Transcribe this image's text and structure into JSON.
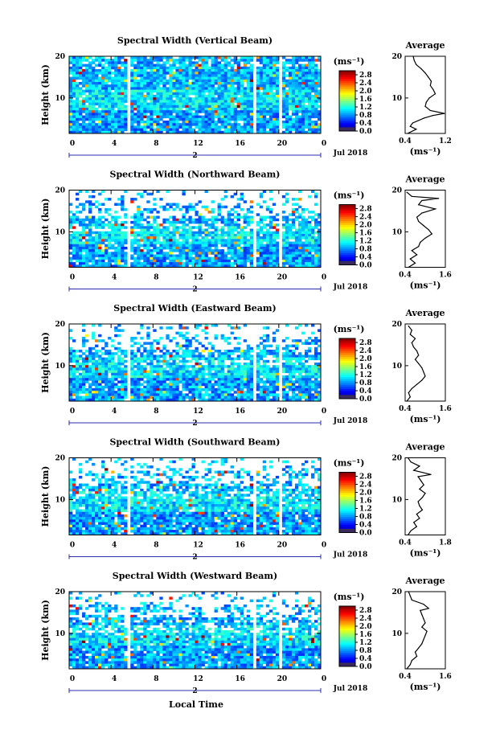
{
  "figure": {
    "xlabel": "Local Time",
    "date_label": "Jul 2018",
    "day_marker": "2"
  },
  "chart_data": [
    {
      "type": "heatmap",
      "title": "Spectral Width (Vertical Beam)",
      "xlabel": "",
      "ylabel": "Height (km)",
      "x_ticks": [
        "0",
        "4",
        "8",
        "12",
        "16",
        "20",
        "0"
      ],
      "y_ticks": [
        "10",
        "20"
      ],
      "xlim": [
        0,
        24
      ],
      "ylim": [
        1.5,
        20
      ],
      "colorbar": {
        "unit": "(ms⁻¹)",
        "ticks": [
          "0.0",
          "0.4",
          "0.8",
          "1.2",
          "1.6",
          "2.0",
          "2.4",
          "2.8"
        ],
        "range": [
          0.0,
          3.0
        ]
      },
      "data_gaps_hours": [
        5.8,
        17.6,
        20.2
      ],
      "profile": {
        "title": "Average",
        "xlabel": "(ms⁻¹)",
        "x_ticks": [
          "0.4",
          "1.2"
        ],
        "y_ticks": [
          "10",
          "20"
        ],
        "xlim": [
          0.4,
          1.2
        ],
        "ylim": [
          1.5,
          20
        ],
        "points": [
          [
            0.45,
            1.5
          ],
          [
            0.62,
            2.5
          ],
          [
            0.5,
            3.2
          ],
          [
            0.55,
            4
          ],
          [
            0.78,
            5.2
          ],
          [
            0.95,
            5.8
          ],
          [
            1.18,
            6.3
          ],
          [
            0.9,
            7
          ],
          [
            0.8,
            8
          ],
          [
            0.82,
            9
          ],
          [
            0.88,
            10
          ],
          [
            1.0,
            11
          ],
          [
            0.96,
            12
          ],
          [
            0.9,
            13
          ],
          [
            0.92,
            14
          ],
          [
            0.86,
            15
          ],
          [
            0.8,
            16
          ],
          [
            0.72,
            17
          ],
          [
            0.62,
            18
          ],
          [
            0.58,
            19
          ],
          [
            0.56,
            20
          ]
        ]
      }
    },
    {
      "type": "heatmap",
      "title": "Spectral Width (Northward Beam)",
      "xlabel": "",
      "ylabel": "Height (km)",
      "x_ticks": [
        "0",
        "4",
        "8",
        "12",
        "16",
        "20",
        "0"
      ],
      "y_ticks": [
        "10",
        "20"
      ],
      "xlim": [
        0,
        24
      ],
      "ylim": [
        1.5,
        20
      ],
      "colorbar": {
        "unit": "(ms⁻¹)",
        "ticks": [
          "0.0",
          "0.4",
          "0.8",
          "1.2",
          "1.6",
          "2.0",
          "2.4",
          "2.8"
        ],
        "range": [
          0.0,
          3.0
        ]
      },
      "data_gaps_hours": [
        5.8,
        17.6,
        20.2
      ],
      "profile": {
        "title": "Average",
        "xlabel": "(ms⁻¹)",
        "x_ticks": [
          "0.4",
          "1.6"
        ],
        "y_ticks": [
          "10",
          "20"
        ],
        "xlim": [
          0.4,
          1.6
        ],
        "ylim": [
          1.5,
          20
        ],
        "points": [
          [
            0.5,
            1.5
          ],
          [
            0.7,
            2.5
          ],
          [
            0.55,
            3.5
          ],
          [
            0.75,
            4.5
          ],
          [
            0.6,
            5.5
          ],
          [
            0.8,
            6.5
          ],
          [
            0.85,
            7.5
          ],
          [
            1.0,
            8.5
          ],
          [
            1.2,
            9.5
          ],
          [
            1.1,
            10.5
          ],
          [
            0.95,
            11.5
          ],
          [
            0.8,
            12.5
          ],
          [
            0.75,
            13.5
          ],
          [
            0.9,
            14.5
          ],
          [
            1.3,
            15.5
          ],
          [
            0.8,
            16.5
          ],
          [
            0.9,
            17.5
          ],
          [
            1.4,
            18
          ],
          [
            0.6,
            18.5
          ],
          [
            0.45,
            19.5
          ]
        ]
      }
    },
    {
      "type": "heatmap",
      "title": "Spectral Width (Eastward Beam)",
      "xlabel": "",
      "ylabel": "Height (km)",
      "x_ticks": [
        "0",
        "4",
        "8",
        "12",
        "16",
        "20",
        "0"
      ],
      "y_ticks": [
        "10",
        "20"
      ],
      "xlim": [
        0,
        24
      ],
      "ylim": [
        1.5,
        20
      ],
      "colorbar": {
        "unit": "(ms⁻¹)",
        "ticks": [
          "0.0",
          "0.4",
          "0.8",
          "1.2",
          "1.6",
          "2.0",
          "2.4",
          "2.8"
        ],
        "range": [
          0.0,
          3.0
        ]
      },
      "data_gaps_hours": [
        5.8,
        17.6,
        20.2
      ],
      "profile": {
        "title": "Average",
        "xlabel": "(ms⁻¹)",
        "x_ticks": [
          "0.4",
          "1.6"
        ],
        "y_ticks": [
          "10",
          "20"
        ],
        "xlim": [
          0.4,
          1.6
        ],
        "ylim": [
          1.5,
          20
        ],
        "points": [
          [
            0.45,
            1.5
          ],
          [
            0.55,
            2.5
          ],
          [
            0.5,
            3.5
          ],
          [
            0.6,
            4.5
          ],
          [
            0.75,
            5.5
          ],
          [
            0.9,
            6.5
          ],
          [
            1.0,
            7.5
          ],
          [
            0.95,
            8.5
          ],
          [
            0.9,
            9.5
          ],
          [
            0.8,
            10.5
          ],
          [
            0.7,
            11.5
          ],
          [
            0.8,
            12.5
          ],
          [
            0.75,
            13.5
          ],
          [
            0.65,
            14.5
          ],
          [
            0.6,
            15.5
          ],
          [
            0.7,
            16.5
          ],
          [
            0.55,
            17.5
          ],
          [
            0.6,
            18.5
          ],
          [
            0.5,
            19.5
          ]
        ]
      }
    },
    {
      "type": "heatmap",
      "title": "Spectral Width (Southward Beam)",
      "xlabel": "",
      "ylabel": "Height (km)",
      "x_ticks": [
        "0",
        "4",
        "8",
        "12",
        "16",
        "20",
        "0"
      ],
      "y_ticks": [
        "10",
        "20"
      ],
      "xlim": [
        0,
        24
      ],
      "ylim": [
        1.5,
        20
      ],
      "colorbar": {
        "unit": "(ms⁻¹)",
        "ticks": [
          "0.0",
          "0.4",
          "0.8",
          "1.2",
          "1.6",
          "2.0",
          "2.4",
          "2.8"
        ],
        "range": [
          0.0,
          3.0
        ]
      },
      "data_gaps_hours": [
        5.8,
        17.6,
        20.2
      ],
      "profile": {
        "title": "Average",
        "xlabel": "(ms⁻¹)",
        "x_ticks": [
          "0.4",
          "1.8"
        ],
        "y_ticks": [
          "10",
          "20"
        ],
        "xlim": [
          0.4,
          1.8
        ],
        "ylim": [
          1.5,
          20
        ],
        "points": [
          [
            0.5,
            1.5
          ],
          [
            0.6,
            2.5
          ],
          [
            0.8,
            3.5
          ],
          [
            0.7,
            4.5
          ],
          [
            0.9,
            5.5
          ],
          [
            0.8,
            6.5
          ],
          [
            1.0,
            7.5
          ],
          [
            0.9,
            8.5
          ],
          [
            0.85,
            9.5
          ],
          [
            1.0,
            10.5
          ],
          [
            1.1,
            11.5
          ],
          [
            0.9,
            12.5
          ],
          [
            1.05,
            13.5
          ],
          [
            0.95,
            14.5
          ],
          [
            0.85,
            15.5
          ],
          [
            1.3,
            16
          ],
          [
            0.7,
            17
          ],
          [
            0.9,
            18
          ],
          [
            0.6,
            19
          ],
          [
            0.5,
            20
          ]
        ]
      }
    },
    {
      "type": "heatmap",
      "title": "Spectral Width (Westward Beam)",
      "xlabel": "Local Time",
      "ylabel": "Height (km)",
      "x_ticks": [
        "0",
        "4",
        "8",
        "12",
        "16",
        "20",
        "0"
      ],
      "y_ticks": [
        "10",
        "20"
      ],
      "xlim": [
        0,
        24
      ],
      "ylim": [
        1.5,
        20
      ],
      "colorbar": {
        "unit": "(ms⁻¹)",
        "ticks": [
          "0.0",
          "0.4",
          "0.8",
          "1.2",
          "1.6",
          "2.0",
          "2.4",
          "2.8"
        ],
        "range": [
          0.0,
          3.0
        ]
      },
      "data_gaps_hours": [
        5.8,
        17.6,
        20.2
      ],
      "profile": {
        "title": "Average",
        "xlabel": "(ms⁻¹)",
        "x_ticks": [
          "0.4",
          "1.6"
        ],
        "y_ticks": [
          "10",
          "20"
        ],
        "xlim": [
          0.4,
          1.6
        ],
        "ylim": [
          1.5,
          20
        ],
        "points": [
          [
            0.45,
            1.5
          ],
          [
            0.55,
            2.5
          ],
          [
            0.6,
            3.5
          ],
          [
            0.75,
            4.5
          ],
          [
            0.7,
            5.5
          ],
          [
            0.8,
            6.5
          ],
          [
            0.9,
            7.5
          ],
          [
            0.95,
            8.5
          ],
          [
            1.0,
            9.5
          ],
          [
            1.05,
            10.5
          ],
          [
            0.9,
            11.5
          ],
          [
            1.0,
            12.5
          ],
          [
            0.95,
            13.5
          ],
          [
            0.9,
            14.5
          ],
          [
            0.85,
            15.5
          ],
          [
            1.1,
            16
          ],
          [
            0.95,
            17
          ],
          [
            0.6,
            18
          ],
          [
            0.55,
            19
          ],
          [
            0.5,
            20
          ]
        ]
      }
    }
  ]
}
